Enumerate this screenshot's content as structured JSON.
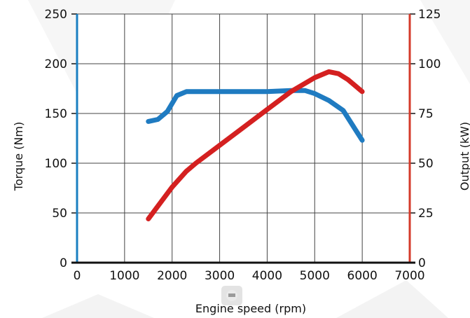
{
  "chart_data": {
    "type": "line",
    "title": "",
    "xlabel": "Engine speed (rpm)",
    "ylabel_left": "Torque (Nm)",
    "ylabel_right": "Output (kW)",
    "x_ticks": [
      "0",
      "1000",
      "2000",
      "3000",
      "4000",
      "5000",
      "6000",
      "7000"
    ],
    "y_left_ticks": [
      "0",
      "50",
      "100",
      "150",
      "200",
      "250"
    ],
    "y_right_ticks": [
      "0",
      "25",
      "50",
      "75",
      "100",
      "125"
    ],
    "xlim": [
      0,
      7000
    ],
    "ylim_left": [
      0,
      250
    ],
    "ylim_right": [
      0,
      125
    ],
    "grid": true,
    "series": [
      {
        "axis": "left",
        "color": "#1f7bc1",
        "x": [
          1500,
          1700,
          1900,
          2100,
          2300,
          2500,
          3000,
          3500,
          4000,
          4500,
          4800,
          5000,
          5300,
          5600,
          6000
        ],
        "values": [
          142,
          144,
          152,
          168,
          172,
          172,
          172,
          172,
          172,
          173,
          173,
          170,
          163,
          153,
          123
        ]
      },
      {
        "axis": "right",
        "color": "#d42020",
        "x": [
          1500,
          2000,
          2300,
          2500,
          3000,
          3500,
          4000,
          4500,
          5000,
          5300,
          5500,
          5700,
          6000
        ],
        "values": [
          22,
          38,
          46,
          50,
          59,
          68,
          77,
          86,
          93,
          96,
          95,
          92,
          86
        ]
      }
    ],
    "left_axis_color": "#1a7fc1",
    "right_axis_color": "#d43a2a"
  }
}
